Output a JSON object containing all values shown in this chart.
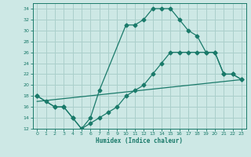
{
  "xlabel": "Humidex (Indice chaleur)",
  "background_color": "#cde8e5",
  "grid_color": "#aacfcb",
  "line_color": "#1a7a6a",
  "xlim": [
    -0.5,
    23.5
  ],
  "ylim": [
    12,
    35
  ],
  "xticks": [
    0,
    1,
    2,
    3,
    4,
    5,
    6,
    7,
    8,
    9,
    10,
    11,
    12,
    13,
    14,
    15,
    16,
    17,
    18,
    19,
    20,
    21,
    22,
    23
  ],
  "yticks": [
    12,
    14,
    16,
    18,
    20,
    22,
    24,
    26,
    28,
    30,
    32,
    34
  ],
  "line1_x": [
    0,
    1,
    2,
    3,
    4,
    5,
    6,
    7,
    10,
    11,
    12,
    13,
    14,
    15,
    16,
    17,
    18,
    19,
    20,
    21,
    22,
    23
  ],
  "line1_y": [
    18,
    17,
    16,
    16,
    14,
    12,
    14,
    19,
    31,
    31,
    32,
    34,
    34,
    34,
    32,
    30,
    29,
    26,
    26,
    22,
    22,
    21
  ],
  "line2_x": [
    0,
    2,
    3,
    4,
    5,
    6,
    7,
    8,
    9,
    10,
    11,
    12,
    13,
    14,
    15,
    16,
    17,
    18,
    19,
    20,
    21,
    22,
    23
  ],
  "line2_y": [
    18,
    16,
    16,
    14,
    12,
    13,
    14,
    15,
    16,
    18,
    19,
    20,
    22,
    24,
    26,
    26,
    26,
    26,
    26,
    26,
    22,
    22,
    21
  ],
  "line3_x": [
    0,
    23
  ],
  "line3_y": [
    17,
    21
  ]
}
